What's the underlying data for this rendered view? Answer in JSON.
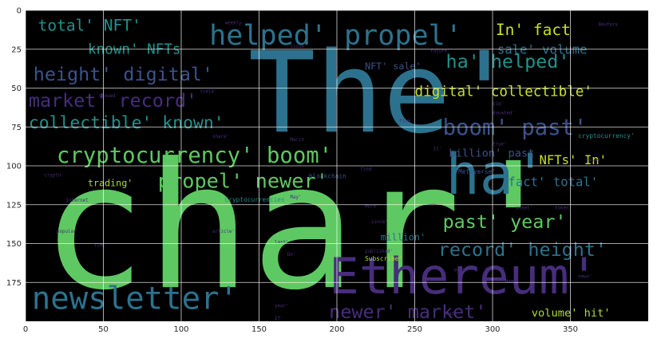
{
  "chart_data": {
    "type": "wordcloud",
    "xlabel": "",
    "ylabel": "",
    "xlim": [
      0,
      400
    ],
    "ylim": [
      200,
      0
    ],
    "grid": true,
    "x_ticks": [
      "0",
      "50",
      "100",
      "150",
      "200",
      "250",
      "300",
      "350"
    ],
    "y_ticks": [
      "0",
      "25",
      "50",
      "75",
      "100",
      "125",
      "150",
      "175"
    ],
    "colors": {
      "background": "#000000",
      "grid": "#ffffff",
      "green": "#5ec962",
      "teal": "#2c728e",
      "purple": "#472d7b",
      "yellow": "#c8e020",
      "cyan": "#21918c",
      "lime": "#addc30",
      "indigo": "#3b528b"
    },
    "words": [
      {
        "text": "char'",
        "x": 10,
        "y": 178,
        "size": 112,
        "color": "#5ec962"
      },
      {
        "text": "The'",
        "x": 143,
        "y": 78,
        "size": 72,
        "color": "#2c728e"
      },
      {
        "text": "ha'",
        "x": 270,
        "y": 118,
        "size": 36,
        "color": "#2c728e"
      },
      {
        "text": "Ethereum'",
        "x": 195,
        "y": 182,
        "size": 32,
        "color": "#472d7b"
      },
      {
        "text": "newsletter'",
        "x": 4,
        "y": 192,
        "size": 20,
        "color": "#2c728e"
      },
      {
        "text": "helped' propel'",
        "x": 118,
        "y": 22,
        "size": 18,
        "color": "#2c728e"
      },
      {
        "text": "cryptocurrency' boom'",
        "x": 20,
        "y": 98,
        "size": 14,
        "color": "#5ec962"
      },
      {
        "text": "boom' past'",
        "x": 268,
        "y": 80,
        "size": 14,
        "color": "#3b528b"
      },
      {
        "text": "propel' newer'",
        "x": 85,
        "y": 114,
        "size": 13,
        "color": "#5ec962"
      },
      {
        "text": "ha' helped'",
        "x": 270,
        "y": 37,
        "size": 12,
        "color": "#21918c"
      },
      {
        "text": "past' year'",
        "x": 268,
        "y": 140,
        "size": 12,
        "color": "#5ec962"
      },
      {
        "text": "record' height'",
        "x": 265,
        "y": 158,
        "size": 12,
        "color": "#2c728e"
      },
      {
        "text": "newer' market'",
        "x": 195,
        "y": 198,
        "size": 12,
        "color": "#472d7b"
      },
      {
        "text": "height' digital'",
        "x": 5,
        "y": 45,
        "size": 12,
        "color": "#3b528b"
      },
      {
        "text": "market' record'",
        "x": 2,
        "y": 62,
        "size": 12,
        "color": "#472d7b"
      },
      {
        "text": "collectible' known'",
        "x": 2,
        "y": 76,
        "size": 11,
        "color": "#21918c"
      },
      {
        "text": "total' NFT'",
        "x": 8,
        "y": 13,
        "size": 10,
        "color": "#21918c"
      },
      {
        "text": "known' NFTs",
        "x": 40,
        "y": 28,
        "size": 9,
        "color": "#21918c"
      },
      {
        "text": "In' fact",
        "x": 302,
        "y": 16,
        "size": 10,
        "color": "#c8e020"
      },
      {
        "text": "digital' collectible'",
        "x": 250,
        "y": 55,
        "size": 9,
        "color": "#c8e020"
      },
      {
        "text": "sale' volume",
        "x": 303,
        "y": 28,
        "size": 8,
        "color": "#2c728e"
      },
      {
        "text": "NFTs' In'",
        "x": 330,
        "y": 99,
        "size": 8,
        "color": "#c8e020"
      },
      {
        "text": "fact' total'",
        "x": 310,
        "y": 113,
        "size": 8,
        "color": "#2c728e"
      },
      {
        "text": "volume' hit'",
        "x": 325,
        "y": 197,
        "size": 7,
        "color": "#addc30"
      },
      {
        "text": "billion' past",
        "x": 272,
        "y": 94,
        "size": 7,
        "color": "#3b528b"
      },
      {
        "text": "NFT' sale'",
        "x": 218,
        "y": 38,
        "size": 6,
        "color": "#3b528b"
      },
      {
        "text": "trading'",
        "x": 40,
        "y": 113,
        "size": 6,
        "color": "#addc30"
      },
      {
        "text": "million'",
        "x": 228,
        "y": 148,
        "size": 6,
        "color": "#2c728e"
      },
      {
        "text": "Subscribe'",
        "x": 218,
        "y": 161,
        "size": 4,
        "color": "#addc30"
      },
      {
        "text": "Metaverse'",
        "x": 278,
        "y": 105,
        "size": 4,
        "color": "#3b528b"
      },
      {
        "text": "cryptocurrency'",
        "x": 355,
        "y": 82,
        "size": 4,
        "color": "#21918c"
      },
      {
        "text": "blockchain",
        "x": 182,
        "y": 108,
        "size": 4,
        "color": "#3b528b"
      },
      {
        "text": "Cryptocurrencies",
        "x": 128,
        "y": 123,
        "size": 4,
        "color": "#21918c"
      },
      {
        "text": "weekly",
        "x": 128,
        "y": 9,
        "size": 3,
        "color": "#472d7b"
      },
      {
        "text": "Reuters",
        "x": 368,
        "y": 10,
        "size": 3,
        "color": "#472d7b"
      },
      {
        "text": "future'",
        "x": 260,
        "y": 27,
        "size": 3,
        "color": "#472d7b"
      },
      {
        "text": "issue",
        "x": 170,
        "y": 24,
        "size": 3,
        "color": "#472d7b"
      },
      {
        "text": "showed'",
        "x": 47,
        "y": 56,
        "size": 3,
        "color": "#472d7b"
      },
      {
        "text": "Yield'",
        "x": 112,
        "y": 53,
        "size": 3,
        "color": "#472d7b"
      },
      {
        "text": "March",
        "x": 170,
        "y": 84,
        "size": 3,
        "color": "#472d7b"
      },
      {
        "text": "donated'",
        "x": 300,
        "y": 67,
        "size": 3,
        "color": "#472d7b"
      },
      {
        "text": "firm",
        "x": 240,
        "y": 72,
        "size": 3,
        "color": "#472d7b"
      },
      {
        "text": "old'",
        "x": 300,
        "y": 61,
        "size": 3,
        "color": "#472d7b"
      },
      {
        "text": "share'",
        "x": 120,
        "y": 82,
        "size": 3,
        "color": "#472d7b"
      },
      {
        "text": "crypto'",
        "x": 12,
        "y": 107,
        "size": 3,
        "color": "#472d7b"
      },
      {
        "text": "Internet",
        "x": 26,
        "y": 123,
        "size": 3,
        "color": "#472d7b"
      },
      {
        "text": "May'",
        "x": 170,
        "y": 121,
        "size": 3,
        "color": "#472d7b"
      },
      {
        "text": "find'",
        "x": 215,
        "y": 103,
        "size": 3,
        "color": "#472d7b"
      },
      {
        "text": "More'",
        "x": 218,
        "y": 127,
        "size": 3,
        "color": "#472d7b"
      },
      {
        "text": "since'",
        "x": 222,
        "y": 137,
        "size": 3,
        "color": "#472d7b"
      },
      {
        "text": "asset'",
        "x": 315,
        "y": 128,
        "size": 3,
        "color": "#472d7b"
      },
      {
        "text": "token'",
        "x": 340,
        "y": 128,
        "size": 3,
        "color": "#472d7b"
      },
      {
        "text": "article'",
        "x": 120,
        "y": 143,
        "size": 3,
        "color": "#472d7b"
      },
      {
        "text": "popular'",
        "x": 20,
        "y": 143,
        "size": 3,
        "color": "#472d7b"
      },
      {
        "text": "TIME",
        "x": 44,
        "y": 152,
        "size": 3,
        "color": "#472d7b"
      },
      {
        "text": "published'",
        "x": 218,
        "y": 156,
        "size": 3,
        "color": "#472d7b"
      },
      {
        "text": "On'",
        "x": 168,
        "y": 158,
        "size": 3,
        "color": "#472d7b"
      },
      {
        "text": "true'",
        "x": 300,
        "y": 87,
        "size": 3,
        "color": "#472d7b"
      },
      {
        "text": "value",
        "x": 360,
        "y": 97,
        "size": 3,
        "color": "#472d7b"
      },
      {
        "text": "one'",
        "x": 275,
        "y": 168,
        "size": 3,
        "color": "#472d7b"
      },
      {
        "text": "version",
        "x": 295,
        "y": 167,
        "size": 3,
        "color": "#472d7b"
      },
      {
        "text": "Name",
        "x": 308,
        "y": 175,
        "size": 3,
        "color": "#472d7b"
      },
      {
        "text": "news'",
        "x": 355,
        "y": 172,
        "size": 3,
        "color": "#472d7b"
      },
      {
        "text": "Bank",
        "x": 270,
        "y": 196,
        "size": 3,
        "color": "#472d7b"
      },
      {
        "text": "year'",
        "x": 160,
        "y": 191,
        "size": 3,
        "color": "#472d7b"
      },
      {
        "text": "If'",
        "x": 160,
        "y": 199,
        "size": 3,
        "color": "#472d7b"
      },
      {
        "text": "last'",
        "x": 160,
        "y": 150,
        "size": 3,
        "color": "#472d7b"
      },
      {
        "text": "It'",
        "x": 262,
        "y": 90,
        "size": 3,
        "color": "#472d7b"
      }
    ]
  }
}
